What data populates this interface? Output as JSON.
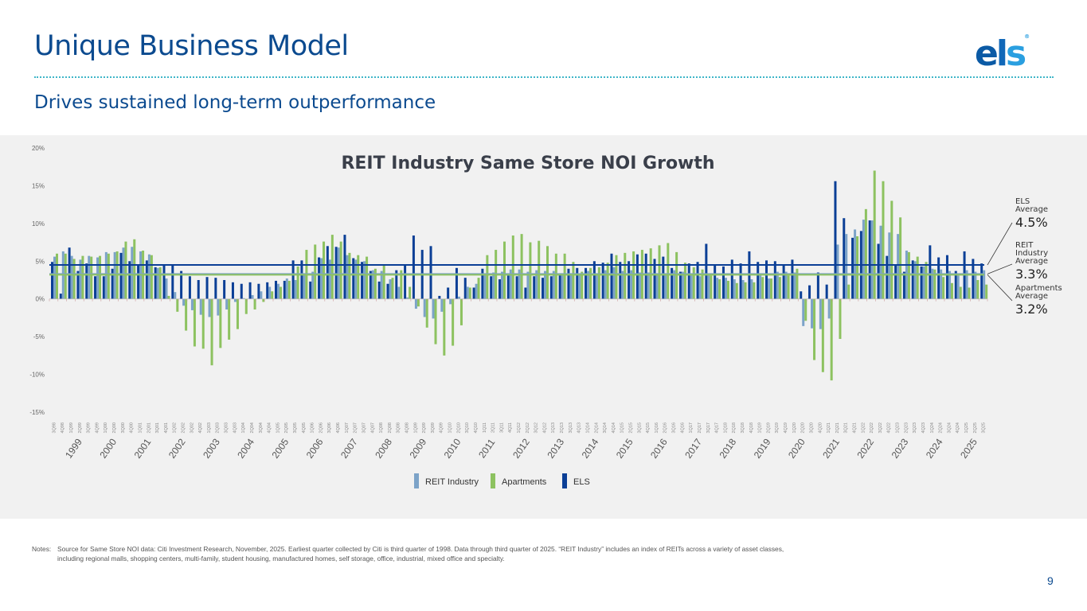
{
  "header": {
    "title": "Unique Business Model",
    "subtitle": "Drives sustained long-term outperformance",
    "logo_text": "els",
    "logo_mark": "®"
  },
  "colors": {
    "reit": "#7ca3c8",
    "apartments": "#8dc260",
    "els": "#0b3f96",
    "title": "#0b4a8f",
    "panel": "#f1f1f1"
  },
  "annotations": [
    {
      "label_line1": "ELS",
      "label_line2": "Average",
      "label_line3": "",
      "value": "4.5%"
    },
    {
      "label_line1": "REIT",
      "label_line2": "Industry",
      "label_line3": "Average",
      "value": "3.3%"
    },
    {
      "label_line1": "Apartments",
      "label_line2": "Average",
      "label_line3": "",
      "value": "3.2%"
    }
  ],
  "legend": [
    {
      "name": "REIT Industry"
    },
    {
      "name": "Apartments"
    },
    {
      "name": "ELS"
    }
  ],
  "notes": {
    "label": "Notes:",
    "line1": "Source for Same Store NOI data: Citi Investment Research, November, 2025. Earliest quarter collected by Citi is third quarter of 1998. Data through third quarter of 2025. “REIT Industry” includes an index of REITs across a variety of asset classes,",
    "line2": "including regional malls, shopping centers, multi-family, student housing, manufactured homes, self storage, office, industrial, mixed office and specialty."
  },
  "page_number": "9",
  "chart_data": {
    "type": "bar",
    "title": "REIT Industry Same Store NOI Growth",
    "xlabel": "",
    "ylabel": "",
    "ylim": [
      -15,
      20
    ],
    "yticks": [
      20,
      15,
      10,
      5,
      0,
      -5,
      -10,
      -15
    ],
    "ytick_labels": [
      "20%",
      "15%",
      "10%",
      "5%",
      "0%",
      "-5%",
      "-10%",
      "-15%"
    ],
    "legend_position": "bottom-center",
    "year_labels": [
      "1999",
      "2000",
      "2001",
      "2002",
      "2003",
      "2004",
      "2005",
      "2006",
      "2007",
      "2008",
      "2009",
      "2010",
      "2011",
      "2012",
      "2013",
      "2014",
      "2015",
      "2016",
      "2017",
      "2018",
      "2019",
      "2020",
      "2021",
      "2022",
      "2023",
      "2024",
      "2025"
    ],
    "categories": [
      "3Q98",
      "4Q98",
      "1Q99",
      "2Q99",
      "3Q99",
      "4Q99",
      "1Q00",
      "2Q00",
      "3Q00",
      "4Q00",
      "1Q01",
      "2Q01",
      "3Q01",
      "4Q01",
      "1Q02",
      "2Q02",
      "3Q02",
      "4Q02",
      "1Q03",
      "2Q03",
      "3Q03",
      "4Q03",
      "1Q04",
      "2Q04",
      "3Q04",
      "4Q04",
      "1Q05",
      "2Q05",
      "3Q05",
      "4Q05",
      "1Q06",
      "2Q06",
      "3Q06",
      "4Q06",
      "1Q07",
      "2Q07",
      "3Q07",
      "4Q07",
      "1Q08",
      "2Q08",
      "3Q08",
      "4Q08",
      "1Q09",
      "2Q09",
      "3Q09",
      "4Q09",
      "1Q10",
      "2Q10",
      "3Q10",
      "4Q10",
      "1Q11",
      "2Q11",
      "3Q11",
      "4Q11",
      "1Q12",
      "2Q12",
      "3Q12",
      "4Q12",
      "1Q13",
      "2Q13",
      "3Q13",
      "4Q13",
      "1Q14",
      "2Q14",
      "3Q14",
      "4Q14",
      "1Q15",
      "2Q15",
      "3Q15",
      "4Q15",
      "1Q16",
      "2Q16",
      "3Q16",
      "4Q16",
      "1Q17",
      "2Q17",
      "3Q17",
      "4Q17",
      "1Q18",
      "2Q18",
      "3Q18",
      "4Q18",
      "1Q19",
      "2Q19",
      "3Q19",
      "4Q19",
      "1Q20",
      "2Q20",
      "3Q20",
      "4Q20",
      "1Q21",
      "2Q21",
      "3Q21",
      "4Q21",
      "1Q22",
      "2Q22",
      "3Q22",
      "4Q22",
      "1Q23",
      "2Q23",
      "3Q23",
      "4Q23",
      "1Q24",
      "2Q24",
      "3Q24",
      "4Q24",
      "1Q25",
      "2Q25",
      "3Q25"
    ],
    "series": [
      {
        "name": "ELS",
        "values": [
          4.9,
          0.7,
          6.8,
          3.7,
          4.7,
          3.0,
          3.0,
          4.0,
          6.1,
          5.0,
          4.6,
          5.1,
          4.2,
          4.5,
          4.5,
          3.7,
          3.0,
          2.5,
          2.9,
          2.8,
          2.5,
          2.2,
          2.0,
          2.2,
          2.0,
          2.2,
          2.4,
          2.4,
          5.1,
          5.1,
          2.3,
          5.5,
          7.0,
          6.9,
          8.5,
          5.4,
          4.9,
          3.7,
          2.3,
          2.0,
          3.8,
          4.4,
          8.4,
          6.5,
          7.0,
          0.4,
          1.5,
          4.1,
          2.8,
          1.5,
          4.0,
          3.0,
          2.6,
          3.1,
          3.0,
          1.5,
          3.0,
          2.8,
          3.0,
          3.3,
          4.0,
          4.1,
          4.1,
          5.0,
          4.8,
          6.0,
          4.9,
          5.0,
          5.9,
          6.0,
          5.3,
          5.6,
          4.1,
          3.6,
          4.7,
          4.9,
          7.3,
          4.6,
          4.3,
          5.2,
          4.7,
          6.3,
          4.9,
          5.1,
          5.0,
          4.5,
          5.2,
          1.0,
          1.8,
          3.5,
          1.9,
          15.6,
          10.7,
          8.1,
          9.0,
          10.4,
          7.3,
          5.7,
          4.4,
          3.6,
          5.1,
          4.3,
          7.1,
          5.5,
          5.8,
          3.7,
          6.3,
          5.3,
          4.7
        ]
      },
      {
        "name": "REIT Industry",
        "values": [
          5.6,
          6.3,
          5.7,
          5.2,
          5.7,
          5.5,
          6.2,
          6.2,
          6.8,
          6.9,
          6.3,
          5.9,
          4.1,
          2.7,
          0.9,
          -0.9,
          -1.5,
          -2.1,
          -2.4,
          -2.2,
          -1.4,
          -0.4,
          0.1,
          0.5,
          1.0,
          1.6,
          2.0,
          2.7,
          2.5,
          3.4,
          3.6,
          5.4,
          5.2,
          6.8,
          5.8,
          5.2,
          5.0,
          3.8,
          3.7,
          2.6,
          1.6,
          0.2,
          -1.3,
          -2.4,
          -2.6,
          -1.7,
          -0.7,
          0.3,
          1.6,
          2.0,
          3.2,
          3.5,
          3.6,
          3.9,
          3.9,
          3.6,
          3.8,
          3.7,
          3.7,
          3.4,
          3.4,
          3.2,
          3.7,
          3.4,
          3.8,
          4.2,
          3.7,
          3.8,
          3.5,
          3.5,
          3.4,
          3.2,
          3.8,
          3.6,
          3.3,
          3.0,
          3.3,
          2.8,
          2.8,
          2.6,
          2.5,
          2.6,
          3.3,
          2.7,
          3.6,
          3.6,
          3.5,
          -3.6,
          -3.9,
          -4.0,
          -2.6,
          7.2,
          8.6,
          9.2,
          10.5,
          10.4,
          9.7,
          8.8,
          8.6,
          6.4,
          5.0,
          4.3,
          4.0,
          3.9,
          3.7,
          3.1,
          3.8,
          3.6,
          3.8
        ]
      },
      {
        "name": "Apartments",
        "values": [
          6.0,
          6.0,
          5.3,
          5.7,
          5.6,
          5.7,
          6.0,
          6.3,
          7.6,
          7.9,
          6.4,
          5.8,
          4.2,
          0.4,
          -1.7,
          -4.2,
          -6.3,
          -6.6,
          -8.8,
          -6.5,
          -5.4,
          -4.0,
          -2.0,
          -1.4,
          -0.4,
          1.0,
          1.6,
          2.4,
          4.3,
          6.5,
          7.2,
          7.6,
          8.5,
          7.6,
          6.1,
          5.8,
          5.6,
          4.0,
          4.6,
          2.8,
          3.8,
          1.6,
          -1.0,
          -3.8,
          -6.0,
          -7.5,
          -6.2,
          -3.5,
          1.5,
          2.8,
          5.8,
          6.5,
          7.6,
          8.4,
          8.6,
          7.5,
          7.7,
          7.0,
          6.0,
          6.0,
          4.9,
          3.6,
          4.1,
          4.2,
          4.8,
          5.8,
          6.1,
          6.3,
          6.5,
          6.7,
          7.1,
          7.4,
          6.2,
          4.8,
          4.2,
          3.9,
          3.1,
          2.6,
          2.4,
          2.1,
          2.2,
          2.2,
          2.9,
          2.7,
          2.9,
          3.1,
          4.0,
          -2.9,
          -8.1,
          -9.7,
          -10.8,
          -5.3,
          1.9,
          8.3,
          11.9,
          17.0,
          15.6,
          13.0,
          10.8,
          6.2,
          5.6,
          4.9,
          3.9,
          2.9,
          2.1,
          1.6,
          1.5,
          2.5,
          1.9
        ]
      }
    ],
    "averages": [
      {
        "name": "ELS Average",
        "value": 4.5
      },
      {
        "name": "REIT Industry Average",
        "value": 3.3
      },
      {
        "name": "Apartments Average",
        "value": 3.2
      }
    ]
  }
}
